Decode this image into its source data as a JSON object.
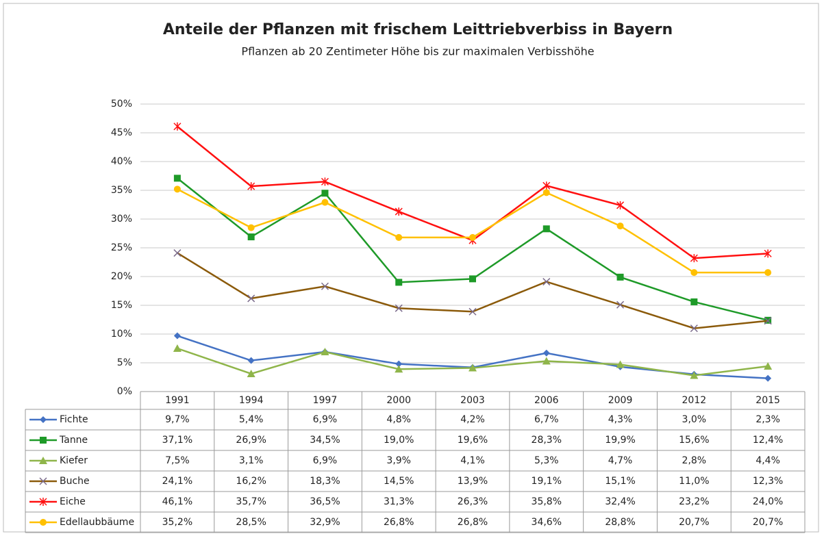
{
  "chart_data": {
    "type": "line",
    "title": "Anteile der Pflanzen mit frischem Leittriebverbiss in Bayern",
    "subtitle": "Pflanzen ab 20 Zentimeter Höhe bis zur maximalen Verbisshöhe",
    "categories": [
      "1991",
      "1994",
      "1997",
      "2000",
      "2003",
      "2006",
      "2009",
      "2012",
      "2015"
    ],
    "ylim": [
      0,
      50
    ],
    "yticks": [
      {
        "value": 0,
        "label": "0%"
      },
      {
        "value": 5,
        "label": "5%"
      },
      {
        "value": 10,
        "label": "10%"
      },
      {
        "value": 15,
        "label": "15%"
      },
      {
        "value": 20,
        "label": "20%"
      },
      {
        "value": 25,
        "label": "25%"
      },
      {
        "value": 30,
        "label": "30%"
      },
      {
        "value": 35,
        "label": "35%"
      },
      {
        "value": 40,
        "label": "40%"
      },
      {
        "value": 45,
        "label": "45%"
      },
      {
        "value": 50,
        "label": "50%"
      }
    ],
    "grid": true,
    "series": [
      {
        "name": "Fichte",
        "color": "#4472c4",
        "marker": "diamond",
        "values": [
          9.7,
          5.4,
          6.9,
          4.8,
          4.2,
          6.7,
          4.3,
          3.0,
          2.3
        ],
        "value_labels": [
          "9,7%",
          "5,4%",
          "6,9%",
          "4,8%",
          "4,2%",
          "6,7%",
          "4,3%",
          "3,0%",
          "2,3%"
        ]
      },
      {
        "name": "Tanne",
        "color": "#1e9a28",
        "marker": "square",
        "values": [
          37.1,
          26.9,
          34.5,
          19.0,
          19.6,
          28.3,
          19.9,
          15.6,
          12.4
        ],
        "value_labels": [
          "37,1%",
          "26,9%",
          "34,5%",
          "19,0%",
          "19,6%",
          "28,3%",
          "19,9%",
          "15,6%",
          "12,4%"
        ]
      },
      {
        "name": "Kiefer",
        "color": "#8fb54a",
        "marker": "triangle",
        "values": [
          7.5,
          3.1,
          6.9,
          3.9,
          4.1,
          5.3,
          4.7,
          2.8,
          4.4
        ],
        "value_labels": [
          "7,5%",
          "3,1%",
          "6,9%",
          "3,9%",
          "4,1%",
          "5,3%",
          "4,7%",
          "2,8%",
          "4,4%"
        ]
      },
      {
        "name": "Buche",
        "color": "#8b5a0a",
        "marker": "x",
        "values": [
          24.1,
          16.2,
          18.3,
          14.5,
          13.9,
          19.1,
          15.1,
          11.0,
          12.3
        ],
        "value_labels": [
          "24,1%",
          "16,2%",
          "18,3%",
          "14,5%",
          "13,9%",
          "19,1%",
          "15,1%",
          "11,0%",
          "12,3%"
        ]
      },
      {
        "name": "Eiche",
        "color": "#ff1010",
        "marker": "star",
        "values": [
          46.1,
          35.7,
          36.5,
          31.3,
          26.3,
          35.8,
          32.4,
          23.2,
          24.0
        ],
        "value_labels": [
          "46,1%",
          "35,7%",
          "36,5%",
          "31,3%",
          "26,3%",
          "35,8%",
          "32,4%",
          "23,2%",
          "24,0%"
        ]
      },
      {
        "name": "Edellaubbäume",
        "color": "#ffc000",
        "marker": "circle",
        "values": [
          35.2,
          28.5,
          32.9,
          26.8,
          26.8,
          34.6,
          28.8,
          20.7,
          20.7
        ],
        "value_labels": [
          "35,2%",
          "28,5%",
          "32,9%",
          "26,8%",
          "26,8%",
          "34,6%",
          "28,8%",
          "20,7%",
          "20,7%"
        ]
      }
    ]
  }
}
